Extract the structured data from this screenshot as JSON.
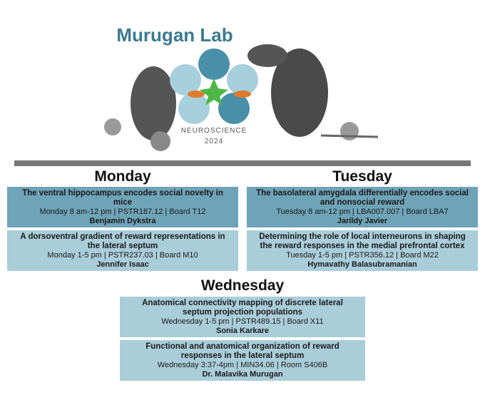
{
  "header": {
    "title": "Murugan Lab",
    "logo_line1": "NEUROSCIENCE",
    "logo_line2": "2024"
  },
  "days": [
    {
      "name": "Monday",
      "sessions": [
        {
          "title": "The ventral hippocampus encodes social novelty in mice",
          "time": "Monday 8 am-12 pm | PSTR187.12 | Board T12",
          "presenter": "Benjamin Dykstra"
        },
        {
          "title": "A dorsoventral gradient of reward representations in the lateral septum",
          "time": "Monday 1-5 pm | PSTR237.03 | Board M10",
          "presenter": "Jennifer Isaac"
        }
      ]
    },
    {
      "name": "Tuesday",
      "sessions": [
        {
          "title": "The basolateral amygdala differentially encodes social and nonsocial reward",
          "time": "Tuesday 8 am-12 pm | LBA007.007 | Board LBA7",
          "presenter": "Jarildy Javier"
        },
        {
          "title": "Determining the role of local interneurons in shaping the reward responses in the medial prefrontal cortex",
          "time": "Tuesday 1-5 pm | PSTR356.12 | Board M22",
          "presenter": "Hymavathy Balasubramanian"
        }
      ]
    },
    {
      "name": "Wednesday",
      "sessions": [
        {
          "title": "Anatomical connectivity mapping of discrete lateral septum projection populations",
          "time": "Wednesday 1-5 pm | PSTR489.15 | Board X11",
          "presenter": "Sonia Karkare"
        },
        {
          "title": "Functional and anatomical organization of reward responses in the lateral septum",
          "time": "Wednesday 3:37-4pm | MIN34.06 | Room S406B",
          "presenter": "Dr. Malavika Murugan"
        }
      ]
    }
  ]
}
